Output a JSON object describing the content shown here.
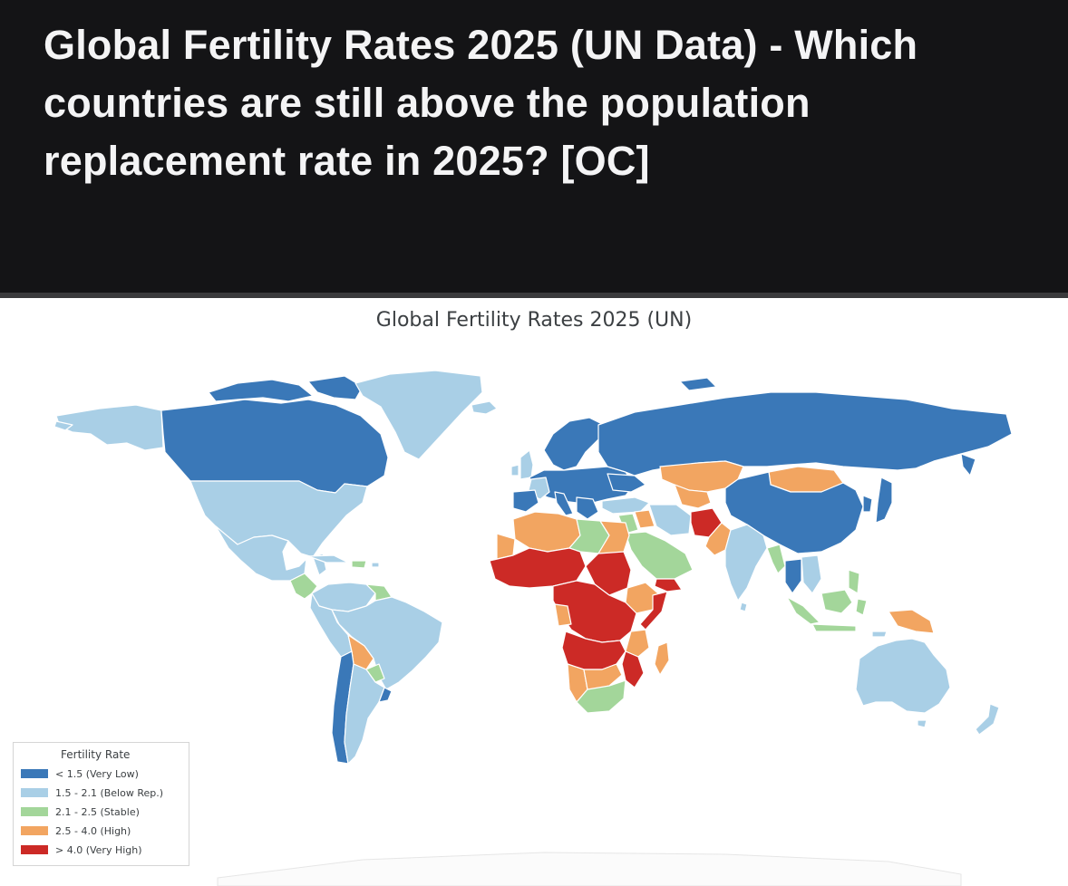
{
  "post": {
    "title": "Global Fertility Rates 2025 (UN Data) - Which countries are still above the population replacement rate in 2025? [OC]"
  },
  "map": {
    "title": "Global Fertility Rates 2025 (UN)",
    "legend": {
      "title": "Fertility Rate",
      "items": [
        {
          "label": "< 1.5 (Very Low)",
          "color": "#3a78b8"
        },
        {
          "label": "1.5 - 2.1 (Below Rep.)",
          "color": "#a9cfe6"
        },
        {
          "label": "2.1 - 2.5 (Stable)",
          "color": "#a3d69a"
        },
        {
          "label": "2.5 - 4.0 (High)",
          "color": "#f2a561"
        },
        {
          "label": "> 4.0 (Very High)",
          "color": "#cc2a26"
        }
      ]
    }
  },
  "colors": {
    "header_bg": "#141416",
    "header_text": "#f4f4f5",
    "divider": "#3a3a3c",
    "border": "#ffffff"
  }
}
